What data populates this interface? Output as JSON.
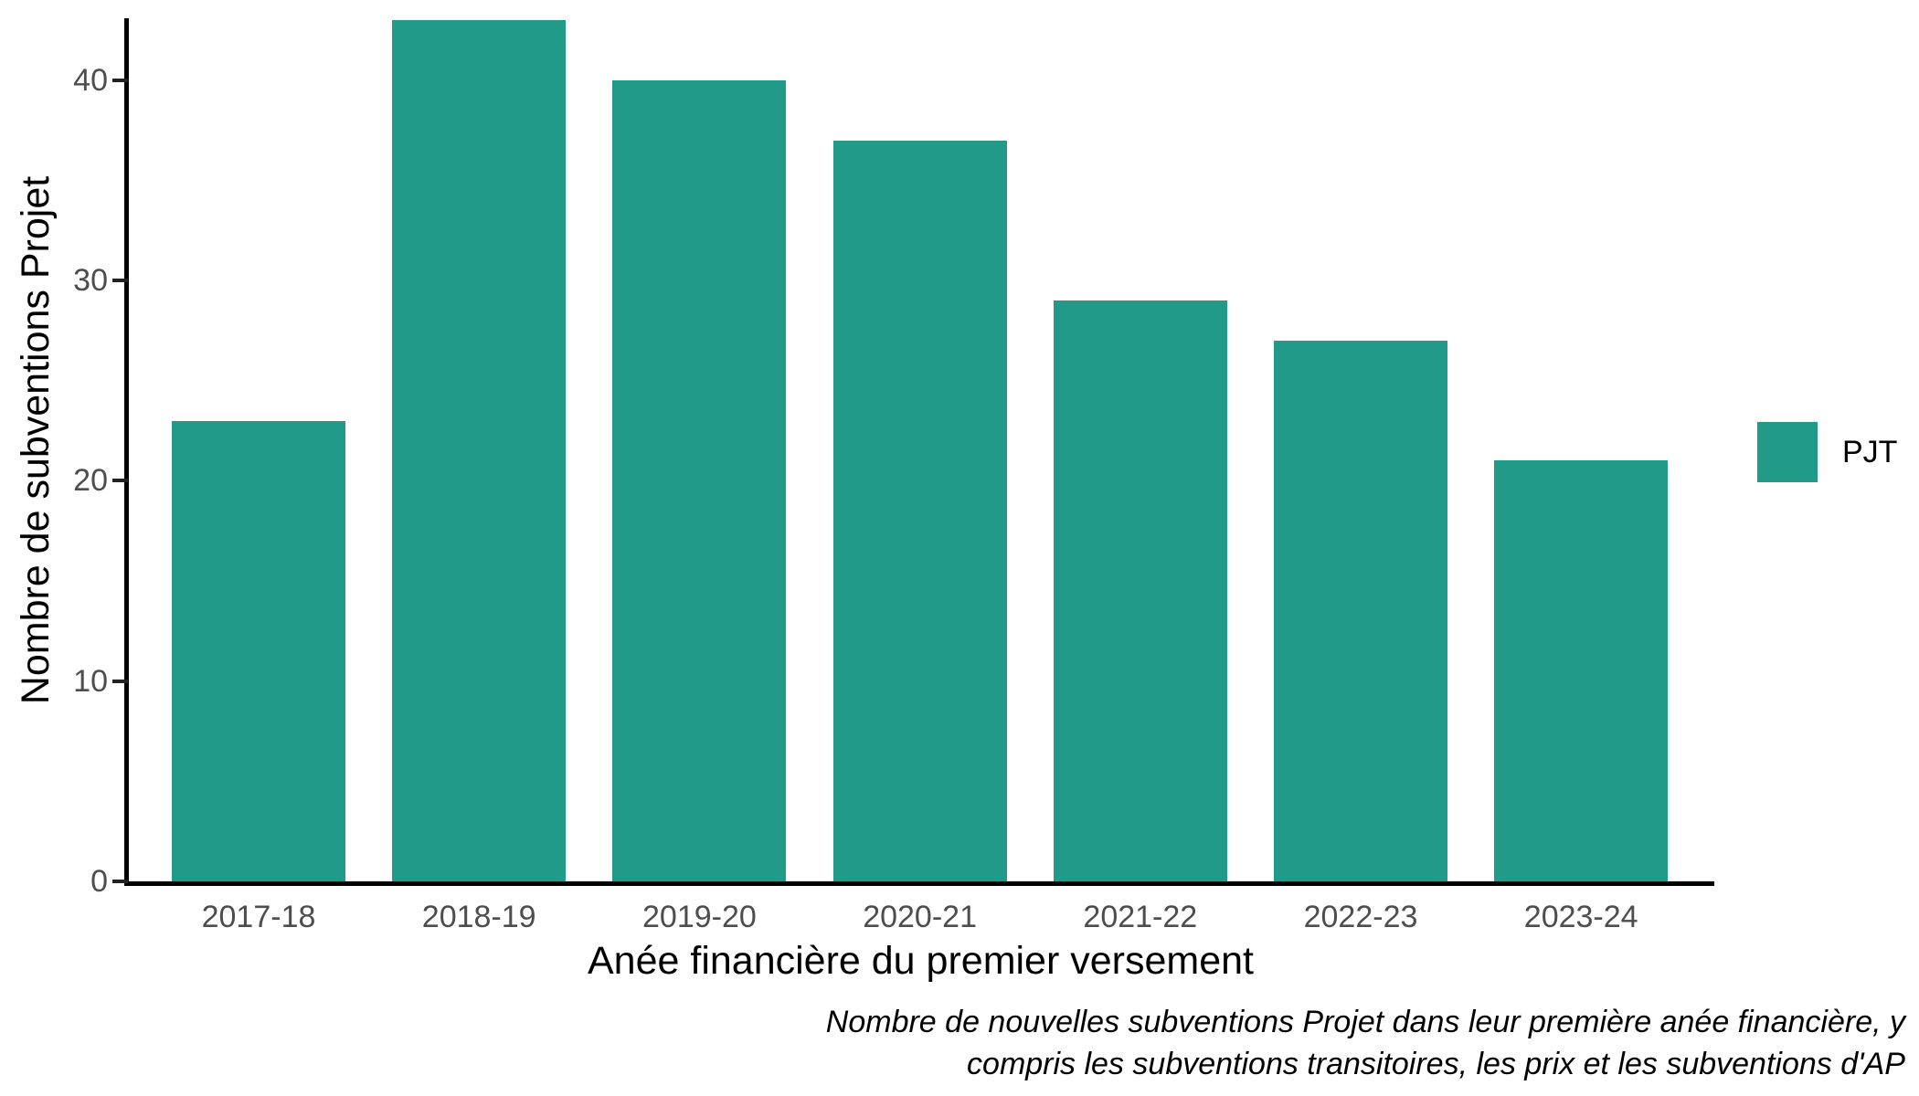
{
  "chart_data": {
    "type": "bar",
    "title": "",
    "categories": [
      "2017-18",
      "2018-19",
      "2019-20",
      "2020-21",
      "2021-22",
      "2022-23",
      "2023-24"
    ],
    "values": [
      23,
      43,
      40,
      37,
      29,
      27,
      21
    ],
    "series_name": "PJT",
    "xlabel": "Anée financière du premier versement",
    "ylabel": "Nombre de subventions Projet",
    "ylim": [
      0,
      43
    ],
    "yticks": [
      0,
      10,
      20,
      30,
      40
    ],
    "grid": false,
    "legend_position": "right-middle"
  },
  "legend": {
    "label": "PJT"
  },
  "caption": {
    "line1": "Nombre de nouvelles subventions Projet dans leur première anée financière, y",
    "line2": "compris les subventions transitoires, les prix et les subventions d'AP"
  },
  "colors": {
    "bar": "#229A8A",
    "axis_line": "#000000",
    "tick_mark": "#222222",
    "tick_label": "#4d4d4d",
    "title_text": "#000000"
  }
}
